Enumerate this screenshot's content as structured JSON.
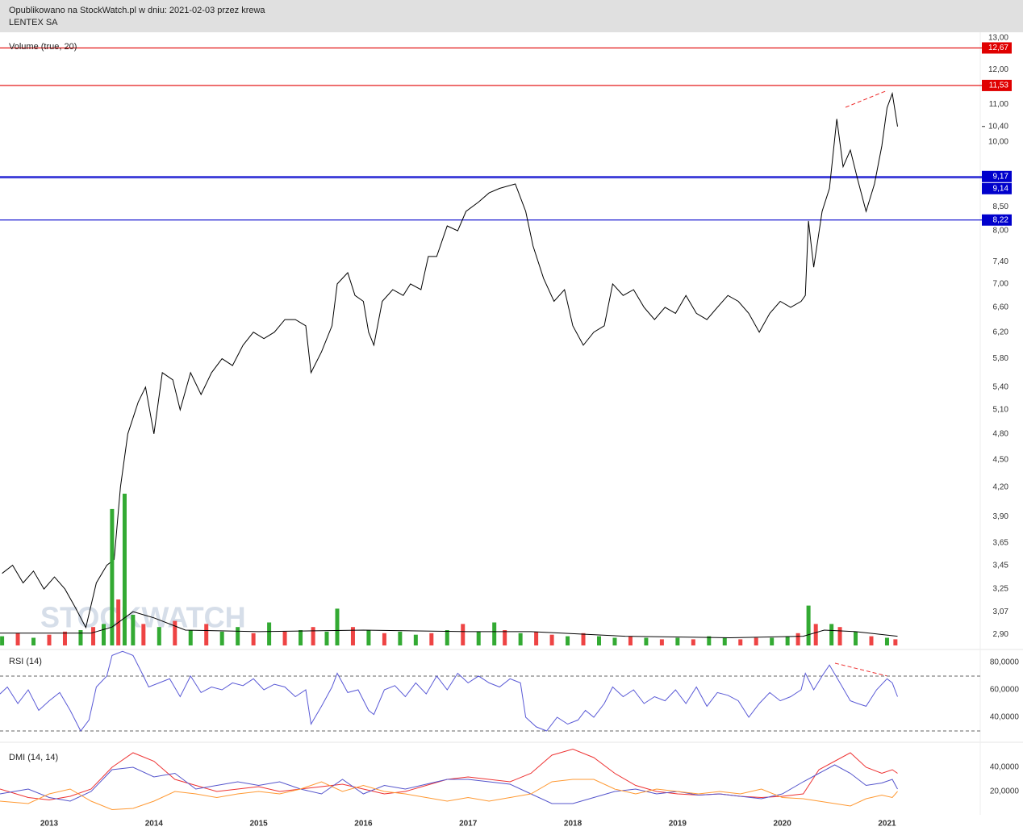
{
  "header": {
    "published": "Opublikowano na StockWatch.pl w dniu: 2021-02-03 przez krewa",
    "ticker": "LENTEX SA"
  },
  "watermark": "STOCKWATCH",
  "chart_data": [
    {
      "type": "line",
      "log_scale": true,
      "xlim": [
        2012.53,
        2021.89
      ],
      "ylim": [
        2.82,
        13.18
      ],
      "yticks": [
        {
          "value": 13,
          "label": "13,00"
        },
        {
          "value": 12,
          "label": "12,00"
        },
        {
          "value": 11,
          "label": "11,00"
        },
        {
          "value": 10,
          "label": "10,00"
        },
        {
          "value": 8.5,
          "label": "8,50"
        },
        {
          "value": 8,
          "label": "8,00"
        },
        {
          "value": 7.4,
          "label": "7,40"
        },
        {
          "value": 7,
          "label": "7,00"
        },
        {
          "value": 6.6,
          "label": "6,60"
        },
        {
          "value": 6.2,
          "label": "6,20"
        },
        {
          "value": 5.8,
          "label": "5,80"
        },
        {
          "value": 5.4,
          "label": "5,40"
        },
        {
          "value": 5.1,
          "label": "5,10"
        },
        {
          "value": 4.8,
          "label": "4,80"
        },
        {
          "value": 4.5,
          "label": "4,50"
        },
        {
          "value": 4.2,
          "label": "4,20"
        },
        {
          "value": 3.9,
          "label": "3,90"
        },
        {
          "value": 3.65,
          "label": "3,65"
        },
        {
          "value": 3.45,
          "label": "3,45"
        },
        {
          "value": 3.25,
          "label": "3,25"
        },
        {
          "value": 3.07,
          "label": "3,07"
        },
        {
          "value": 2.9,
          "label": "2,90"
        }
      ],
      "levels": [
        {
          "value": 12.67,
          "label": "12,67",
          "color": "#e00000"
        },
        {
          "value": 11.53,
          "label": "11,53",
          "color": "#e00000"
        },
        {
          "value": 9.17,
          "label": "9,17",
          "color": "#0000cc"
        },
        {
          "value": 9.14,
          "label": "9,14",
          "color": "#0000cc"
        },
        {
          "value": 8.22,
          "label": "8,22",
          "color": "#0000cc"
        }
      ],
      "last_price": {
        "value": 10.4,
        "label": "10,40"
      },
      "x": [
        2012.55,
        2012.65,
        2012.75,
        2012.85,
        2012.95,
        2013.05,
        2013.15,
        2013.25,
        2013.35,
        2013.45,
        2013.55,
        2013.62,
        2013.68,
        2013.75,
        2013.85,
        2013.92,
        2014.0,
        2014.08,
        2014.18,
        2014.25,
        2014.35,
        2014.45,
        2014.55,
        2014.65,
        2014.75,
        2014.85,
        2014.95,
        2015.05,
        2015.15,
        2015.25,
        2015.35,
        2015.45,
        2015.5,
        2015.6,
        2015.7,
        2015.75,
        2015.85,
        2015.92,
        2016.0,
        2016.05,
        2016.1,
        2016.18,
        2016.28,
        2016.38,
        2016.45,
        2016.55,
        2016.62,
        2016.7,
        2016.8,
        2016.9,
        2016.98,
        2017.1,
        2017.2,
        2017.3,
        2017.45,
        2017.55,
        2017.62,
        2017.72,
        2017.82,
        2017.92,
        2018.0,
        2018.1,
        2018.2,
        2018.3,
        2018.38,
        2018.48,
        2018.58,
        2018.68,
        2018.78,
        2018.88,
        2018.98,
        2019.08,
        2019.18,
        2019.28,
        2019.38,
        2019.48,
        2019.58,
        2019.68,
        2019.78,
        2019.88,
        2019.98,
        2020.08,
        2020.18,
        2020.22,
        2020.25,
        2020.3,
        2020.38,
        2020.45,
        2020.52,
        2020.58,
        2020.65,
        2020.72,
        2020.8,
        2020.88,
        2020.95,
        2021.0,
        2021.05,
        2021.1
      ],
      "series": [
        {
          "color": "#000000",
          "values": [
            3.38,
            3.45,
            3.3,
            3.4,
            3.25,
            3.35,
            3.25,
            3.1,
            2.95,
            3.3,
            3.45,
            3.5,
            4.2,
            4.8,
            5.2,
            5.4,
            4.8,
            5.6,
            5.5,
            5.1,
            5.6,
            5.3,
            5.6,
            5.8,
            5.7,
            6.0,
            6.2,
            6.1,
            6.2,
            6.4,
            6.4,
            6.3,
            5.6,
            5.9,
            6.3,
            7.0,
            7.2,
            6.8,
            6.7,
            6.2,
            6.0,
            6.7,
            6.9,
            6.8,
            7.0,
            6.9,
            7.5,
            7.5,
            8.1,
            8.0,
            8.4,
            8.6,
            8.8,
            8.9,
            9.0,
            8.4,
            7.7,
            7.1,
            6.7,
            6.9,
            6.3,
            6.0,
            6.2,
            6.3,
            7.0,
            6.8,
            6.9,
            6.6,
            6.4,
            6.6,
            6.5,
            6.8,
            6.5,
            6.4,
            6.6,
            6.8,
            6.7,
            6.5,
            6.2,
            6.5,
            6.7,
            6.6,
            6.7,
            6.8,
            8.2,
            7.3,
            8.4,
            8.9,
            10.6,
            9.4,
            9.8,
            9.1,
            8.4,
            9.0,
            9.9,
            10.9,
            11.3,
            10.4
          ]
        }
      ]
    },
    {
      "type": "bar",
      "title": "Volume (true, 20)",
      "xlim": [
        2012.53,
        2021.89
      ],
      "ylim": [
        0,
        100
      ],
      "x": [
        2012.55,
        2012.7,
        2012.85,
        2013.0,
        2013.15,
        2013.3,
        2013.42,
        2013.52,
        2013.6,
        2013.66,
        2013.72,
        2013.8,
        2013.9,
        2014.05,
        2014.2,
        2014.35,
        2014.5,
        2014.65,
        2014.8,
        2014.95,
        2015.1,
        2015.25,
        2015.4,
        2015.52,
        2015.65,
        2015.75,
        2015.9,
        2016.05,
        2016.2,
        2016.35,
        2016.5,
        2016.65,
        2016.8,
        2016.95,
        2017.1,
        2017.25,
        2017.35,
        2017.5,
        2017.65,
        2017.8,
        2017.95,
        2018.1,
        2018.25,
        2018.4,
        2018.55,
        2018.7,
        2018.85,
        2019.0,
        2019.15,
        2019.3,
        2019.45,
        2019.6,
        2019.75,
        2019.9,
        2020.05,
        2020.15,
        2020.25,
        2020.32,
        2020.47,
        2020.55,
        2020.7,
        2020.85,
        2021.0,
        2021.08
      ],
      "values": [
        6,
        8,
        5,
        7,
        9,
        10,
        12,
        14,
        89,
        30,
        99,
        20,
        14,
        12,
        16,
        10,
        14,
        9,
        12,
        8,
        15,
        9,
        10,
        12,
        9,
        24,
        12,
        10,
        8,
        9,
        7,
        8,
        10,
        14,
        9,
        15,
        10,
        8,
        9,
        7,
        6,
        8,
        6,
        5,
        6,
        5,
        4,
        5,
        4,
        6,
        5,
        4,
        5,
        5,
        6,
        8,
        26,
        14,
        14,
        12,
        9,
        6,
        5,
        4
      ],
      "colors": [
        "#33aa33",
        "#ee4444",
        "#33aa33",
        "#ee4444",
        "#ee4444",
        "#33aa33",
        "#ee4444",
        "#33aa33",
        "#33aa33",
        "#ee4444",
        "#33aa33",
        "#33aa33",
        "#ee4444",
        "#33aa33",
        "#ee4444",
        "#33aa33",
        "#ee4444",
        "#33aa33",
        "#33aa33",
        "#ee4444",
        "#33aa33",
        "#ee4444",
        "#33aa33",
        "#ee4444",
        "#33aa33",
        "#33aa33",
        "#ee4444",
        "#33aa33",
        "#ee4444",
        "#33aa33",
        "#33aa33",
        "#ee4444",
        "#33aa33",
        "#ee4444",
        "#33aa33",
        "#33aa33",
        "#ee4444",
        "#33aa33",
        "#ee4444",
        "#ee4444",
        "#33aa33",
        "#ee4444",
        "#33aa33",
        "#33aa33",
        "#ee4444",
        "#33aa33",
        "#ee4444",
        "#33aa33",
        "#ee4444",
        "#33aa33",
        "#33aa33",
        "#ee4444",
        "#ee4444",
        "#33aa33",
        "#33aa33",
        "#ee4444",
        "#33aa33",
        "#ee4444",
        "#33aa33",
        "#ee4444",
        "#33aa33",
        "#ee4444",
        "#33aa33",
        "#ee4444"
      ],
      "ma": {
        "color": "#000000",
        "x": [
          2012.53,
          2013.4,
          2013.6,
          2013.8,
          2014.0,
          2014.3,
          2015.0,
          2016.0,
          2017.0,
          2017.6,
          2018.5,
          2019.5,
          2020.2,
          2020.4,
          2020.7,
          2021.1
        ],
        "values": [
          8,
          8,
          12,
          22,
          18,
          10,
          9,
          10,
          9,
          9,
          6,
          5,
          6,
          10,
          9,
          6
        ]
      }
    },
    {
      "type": "line",
      "title": "RSI (14)",
      "xlim": [
        2012.53,
        2021.89
      ],
      "ylim": [
        24.7,
        87.6
      ],
      "yticks": [
        {
          "value": 80,
          "label": "80,0000"
        },
        {
          "value": 60,
          "label": "60,0000"
        },
        {
          "value": 40,
          "label": "40,0000"
        }
      ],
      "levels": [
        30,
        70
      ],
      "x": [
        2012.53,
        2012.6,
        2012.7,
        2012.8,
        2012.9,
        2013.0,
        2013.1,
        2013.2,
        2013.3,
        2013.38,
        2013.45,
        2013.55,
        2013.6,
        2013.7,
        2013.8,
        2013.9,
        2013.95,
        2014.05,
        2014.15,
        2014.25,
        2014.35,
        2014.45,
        2014.55,
        2014.65,
        2014.75,
        2014.85,
        2014.95,
        2015.05,
        2015.15,
        2015.25,
        2015.35,
        2015.45,
        2015.5,
        2015.6,
        2015.7,
        2015.75,
        2015.85,
        2015.95,
        2016.05,
        2016.1,
        2016.2,
        2016.3,
        2016.4,
        2016.5,
        2016.6,
        2016.7,
        2016.8,
        2016.9,
        2017.0,
        2017.1,
        2017.2,
        2017.3,
        2017.4,
        2017.5,
        2017.55,
        2017.65,
        2017.75,
        2017.85,
        2017.95,
        2018.05,
        2018.12,
        2018.2,
        2018.3,
        2018.38,
        2018.48,
        2018.58,
        2018.68,
        2018.78,
        2018.88,
        2018.98,
        2019.08,
        2019.18,
        2019.28,
        2019.38,
        2019.48,
        2019.58,
        2019.68,
        2019.78,
        2019.88,
        2019.98,
        2020.08,
        2020.18,
        2020.22,
        2020.3,
        2020.38,
        2020.45,
        2020.55,
        2020.65,
        2020.72,
        2020.8,
        2020.9,
        2021.0,
        2021.05,
        2021.1
      ],
      "series": [
        {
          "color": "#5a5ad6",
          "values": [
            57,
            62,
            50,
            60,
            45,
            52,
            58,
            45,
            30,
            38,
            62,
            70,
            85,
            88,
            85,
            70,
            62,
            65,
            68,
            55,
            70,
            58,
            62,
            60,
            65,
            63,
            68,
            60,
            64,
            62,
            55,
            60,
            35,
            48,
            62,
            72,
            58,
            60,
            45,
            42,
            60,
            63,
            55,
            65,
            57,
            70,
            60,
            72,
            65,
            70,
            65,
            62,
            68,
            65,
            40,
            33,
            30,
            40,
            35,
            38,
            45,
            40,
            50,
            62,
            55,
            60,
            50,
            55,
            52,
            60,
            50,
            62,
            48,
            58,
            56,
            52,
            40,
            50,
            58,
            52,
            55,
            60,
            72,
            60,
            70,
            78,
            65,
            52,
            50,
            48,
            60,
            68,
            65,
            55
          ]
        }
      ]
    },
    {
      "type": "line",
      "title": "DMI (14, 14)",
      "xlim": [
        2012.53,
        2021.89
      ],
      "ylim": [
        0.7,
        57.3
      ],
      "yticks": [
        {
          "value": 40,
          "label": "40,0000"
        },
        {
          "value": 20,
          "label": "20,0000"
        }
      ],
      "xticks": [
        2013,
        2014,
        2015,
        2016,
        2017,
        2018,
        2019,
        2020,
        2021
      ],
      "x": [
        2012.53,
        2012.8,
        2013.0,
        2013.2,
        2013.4,
        2013.6,
        2013.8,
        2014.0,
        2014.2,
        2014.4,
        2014.6,
        2014.8,
        2015.0,
        2015.2,
        2015.4,
        2015.6,
        2015.8,
        2016.0,
        2016.2,
        2016.4,
        2016.6,
        2016.8,
        2017.0,
        2017.2,
        2017.4,
        2017.6,
        2017.8,
        2018.0,
        2018.2,
        2018.4,
        2018.6,
        2018.8,
        2019.0,
        2019.2,
        2019.4,
        2019.6,
        2019.8,
        2020.0,
        2020.2,
        2020.35,
        2020.5,
        2020.65,
        2020.8,
        2020.95,
        2021.05,
        2021.1
      ],
      "series": [
        {
          "color": "#ee3333",
          "values": [
            22,
            15,
            13,
            16,
            22,
            40,
            52,
            45,
            30,
            25,
            20,
            22,
            24,
            20,
            22,
            24,
            26,
            22,
            18,
            20,
            25,
            30,
            32,
            30,
            28,
            35,
            50,
            55,
            48,
            35,
            25,
            20,
            18,
            17,
            18,
            16,
            15,
            16,
            18,
            38,
            45,
            52,
            40,
            35,
            38,
            35
          ]
        },
        {
          "color": "#5555cc",
          "values": [
            18,
            22,
            15,
            12,
            20,
            38,
            40,
            32,
            35,
            22,
            25,
            28,
            25,
            28,
            22,
            18,
            30,
            18,
            25,
            22,
            26,
            30,
            30,
            28,
            26,
            18,
            10,
            10,
            15,
            20,
            22,
            18,
            20,
            17,
            18,
            16,
            14,
            18,
            28,
            35,
            42,
            35,
            25,
            27,
            30,
            22
          ]
        },
        {
          "color": "#ff9933",
          "values": [
            12,
            10,
            18,
            22,
            12,
            5,
            6,
            12,
            20,
            18,
            15,
            18,
            20,
            18,
            22,
            28,
            20,
            25,
            20,
            18,
            15,
            12,
            15,
            12,
            15,
            18,
            28,
            30,
            30,
            22,
            18,
            22,
            20,
            18,
            20,
            18,
            22,
            15,
            14,
            12,
            10,
            8,
            14,
            17,
            15,
            20
          ]
        }
      ]
    }
  ]
}
